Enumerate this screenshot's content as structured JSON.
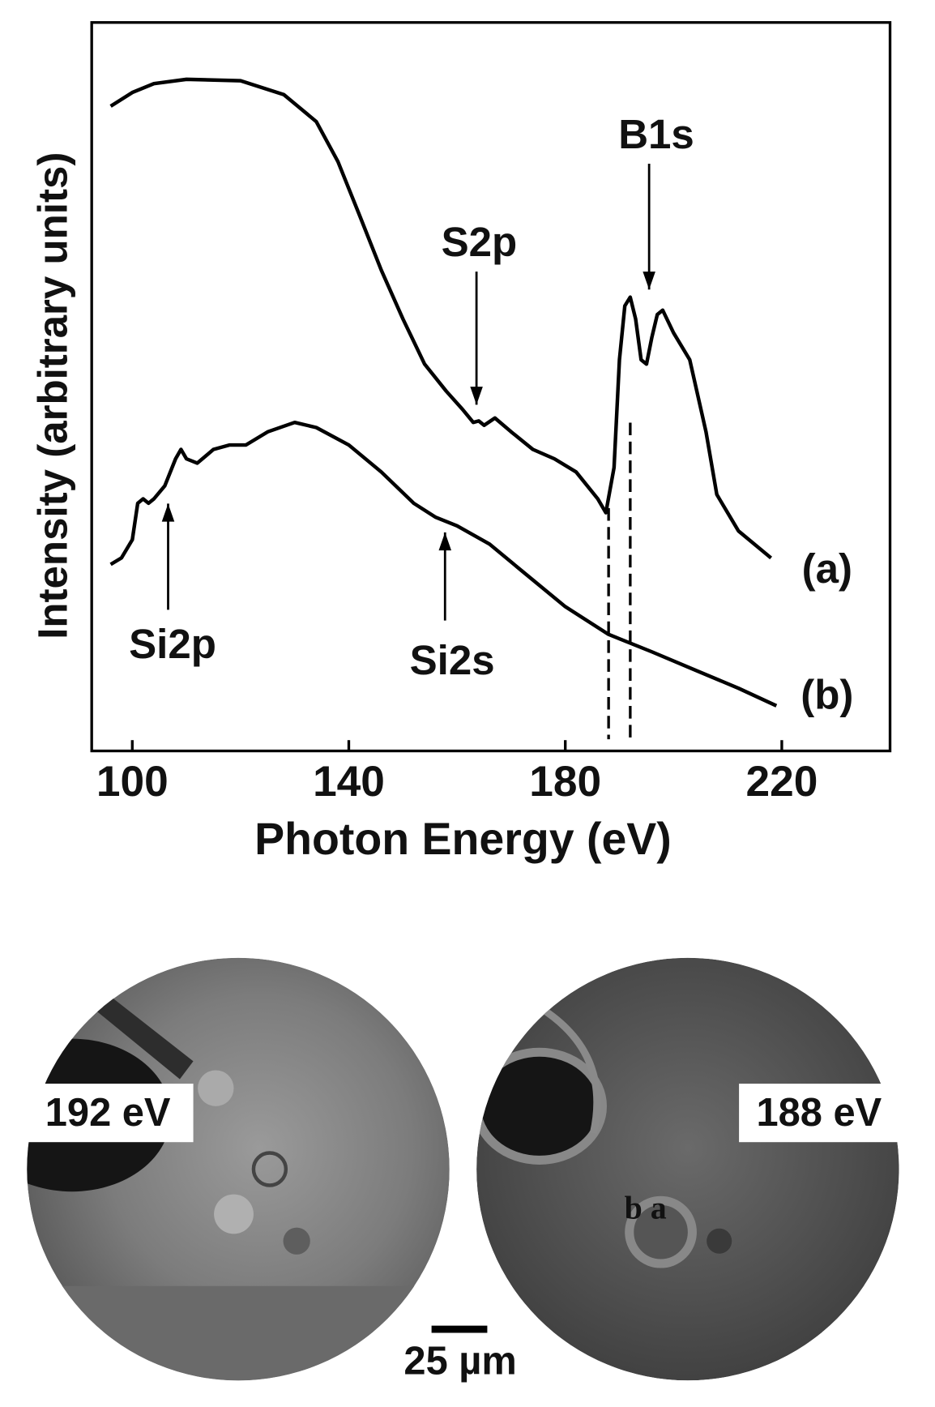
{
  "chart_data": {
    "type": "line",
    "x_label": "Photon Energy (eV)",
    "y_label": "Intensity (arbitrary units)",
    "xlim": [
      92.5,
      240
    ],
    "ylim": [
      0,
      100
    ],
    "xticks": [
      100,
      140,
      180,
      220
    ],
    "reference_lines": [
      188,
      192
    ],
    "annotations": [
      "S2p",
      "B1s",
      "Si2p",
      "Si2s"
    ],
    "series": [
      {
        "name": "(a)",
        "color": "#000000",
        "x": [
          96,
          100,
          104,
          110,
          120,
          128,
          134,
          138,
          142,
          146,
          150,
          154,
          158,
          161,
          163,
          164,
          165,
          167,
          170,
          174,
          178,
          182,
          186,
          187.5,
          189,
          190,
          191,
          192,
          193,
          194,
          195,
          196,
          197,
          198,
          200,
          203,
          206,
          208,
          212,
          218
        ],
        "values": [
          88.5,
          90.4,
          91.6,
          92.2,
          92.0,
          90.1,
          86.4,
          80.9,
          73.5,
          66.0,
          59.3,
          53.1,
          49.4,
          46.9,
          45.1,
          45.3,
          44.7,
          45.7,
          43.8,
          41.4,
          40.1,
          38.3,
          34.6,
          32.7,
          38.9,
          53.7,
          61.1,
          62.3,
          59.3,
          53.7,
          53.1,
          56.8,
          59.9,
          60.5,
          57.4,
          53.7,
          43.8,
          35.2,
          30.2,
          26.5
        ]
      },
      {
        "name": "(b)",
        "color": "#000000",
        "x": [
          96,
          98,
          100,
          101,
          102,
          103,
          104,
          106,
          108,
          109,
          110,
          112,
          115,
          118,
          121,
          125,
          130,
          134,
          140,
          146,
          152,
          156,
          160,
          166,
          172,
          180,
          188,
          196,
          204,
          212,
          219
        ],
        "values": [
          25.6,
          26.5,
          29.0,
          34.0,
          34.6,
          34.0,
          34.6,
          36.4,
          40.1,
          41.4,
          40.1,
          39.5,
          41.4,
          42.0,
          42.0,
          43.8,
          45.1,
          44.4,
          42.0,
          38.3,
          34.0,
          32.1,
          30.9,
          28.4,
          24.7,
          19.8,
          16.0,
          13.6,
          11.1,
          8.6,
          6.2
        ]
      }
    ]
  },
  "images": {
    "left_label": "192 eV",
    "right_label": "188 eV",
    "region_labels": "b a",
    "scale_bar": "25 µm"
  }
}
